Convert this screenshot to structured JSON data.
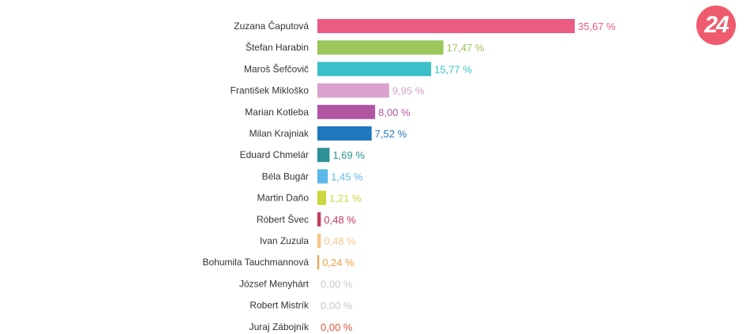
{
  "logo": {
    "text": "24",
    "color": "#ef5b6e"
  },
  "chart_data": {
    "type": "bar",
    "orientation": "horizontal",
    "title": "",
    "xlabel": "",
    "ylabel": "",
    "xlim": [
      0,
      36
    ],
    "grid": false,
    "legend": "none",
    "value_suffix": " %",
    "categories": [
      "Zuzana Čaputová",
      "Štefan Harabin",
      "Maroš Šefčovič",
      "František Mikloško",
      "Marian Kotleba",
      "Milan Krajniak",
      "Eduard Chmelár",
      "Béla Bugár",
      "Martin Daňo",
      "Róbert Švec",
      "Ivan Zuzula",
      "Bohumila Tauchmannová",
      "József Menyhárt",
      "Robert Mistrík",
      "Juraj Zábojník"
    ],
    "values": [
      35.67,
      17.47,
      15.77,
      9.95,
      8.0,
      7.52,
      1.69,
      1.45,
      1.21,
      0.48,
      0.48,
      0.24,
      0.0,
      0.0,
      0.0
    ],
    "value_labels": [
      "35,67",
      "17,47",
      "15,77",
      "9,95",
      "8,00",
      "7,52",
      "1,69",
      "1,45",
      "1,21",
      "0,48",
      "0,48",
      "0,24",
      "0,00",
      "0,00",
      "0,00"
    ],
    "colors": [
      "#ec5b84",
      "#9ac65a",
      "#3bbfc9",
      "#d9a1cb",
      "#b256a4",
      "#1f78bd",
      "#2e9196",
      "#5cb8ea",
      "#c9d63e",
      "#c33a5a",
      "#f7c68a",
      "#f1a045",
      "#c8c8c8",
      "#c8c8c8",
      "#e8543a"
    ]
  }
}
